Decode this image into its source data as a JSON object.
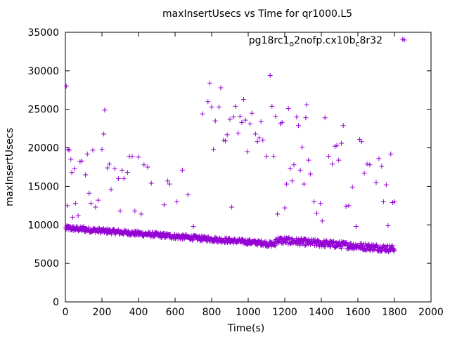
{
  "chart_data": {
    "type": "scatter",
    "title": "maxInsertUsecs vs Time for qr1000.L5",
    "xlabel": "Time(s)",
    "ylabel": "maxInsertUsecs",
    "xlim": [
      0,
      2000
    ],
    "ylim": [
      0,
      35000
    ],
    "xticks": [
      "0",
      "200",
      "400",
      "600",
      "800",
      "1000",
      "1200",
      "1400",
      "1600",
      "1800",
      "2000"
    ],
    "yticks": [
      "0",
      "5000",
      "10000",
      "15000",
      "20000",
      "25000",
      "30000",
      "35000"
    ],
    "legend": {
      "position": "top-right",
      "label_parts": [
        "pg18rc1",
        "o",
        "2nofp.cx10b",
        "c",
        "8r32"
      ]
    },
    "colors": {
      "series": "#9400d3",
      "axis": "#000000"
    },
    "series": [
      {
        "name": "pg18rc1_o2nofp.cx10b_c8r32",
        "marker": "plus",
        "points": [
          [
            5,
            28000
          ],
          [
            10,
            12500
          ],
          [
            15,
            19800
          ],
          [
            20,
            19700
          ],
          [
            30,
            18500
          ],
          [
            35,
            16800
          ],
          [
            40,
            11000
          ],
          [
            50,
            17300
          ],
          [
            55,
            12800
          ],
          [
            70,
            11200
          ],
          [
            80,
            18200
          ],
          [
            90,
            18300
          ],
          [
            100,
            9800
          ],
          [
            110,
            16500
          ],
          [
            120,
            19200
          ],
          [
            130,
            14100
          ],
          [
            140,
            12800
          ],
          [
            150,
            19700
          ],
          [
            165,
            12300
          ],
          [
            180,
            13200
          ],
          [
            200,
            19800
          ],
          [
            210,
            21800
          ],
          [
            215,
            24900
          ],
          [
            230,
            17400
          ],
          [
            240,
            17900
          ],
          [
            250,
            14600
          ],
          [
            270,
            17300
          ],
          [
            290,
            16000
          ],
          [
            300,
            11800
          ],
          [
            310,
            17100
          ],
          [
            320,
            16000
          ],
          [
            340,
            16800
          ],
          [
            350,
            18900
          ],
          [
            365,
            18900
          ],
          [
            380,
            11800
          ],
          [
            400,
            18800
          ],
          [
            415,
            11400
          ],
          [
            430,
            17800
          ],
          [
            450,
            17500
          ],
          [
            470,
            15400
          ],
          [
            540,
            12600
          ],
          [
            560,
            15700
          ],
          [
            570,
            15300
          ],
          [
            610,
            13000
          ],
          [
            640,
            17100
          ],
          [
            670,
            13900
          ],
          [
            700,
            9800
          ],
          [
            750,
            24400
          ],
          [
            780,
            26000
          ],
          [
            790,
            28400
          ],
          [
            800,
            25300
          ],
          [
            810,
            19800
          ],
          [
            820,
            23500
          ],
          [
            840,
            25300
          ],
          [
            850,
            27800
          ],
          [
            865,
            21000
          ],
          [
            875,
            20900
          ],
          [
            885,
            21700
          ],
          [
            900,
            23700
          ],
          [
            910,
            12300
          ],
          [
            920,
            24000
          ],
          [
            930,
            25400
          ],
          [
            945,
            21900
          ],
          [
            955,
            24100
          ],
          [
            965,
            23300
          ],
          [
            975,
            26300
          ],
          [
            985,
            23600
          ],
          [
            995,
            19500
          ],
          [
            1010,
            23100
          ],
          [
            1020,
            24500
          ],
          [
            1040,
            21800
          ],
          [
            1050,
            20800
          ],
          [
            1060,
            21300
          ],
          [
            1070,
            23400
          ],
          [
            1080,
            21000
          ],
          [
            1100,
            18900
          ],
          [
            1120,
            29400
          ],
          [
            1130,
            25400
          ],
          [
            1140,
            18900
          ],
          [
            1150,
            24100
          ],
          [
            1160,
            11400
          ],
          [
            1175,
            23100
          ],
          [
            1185,
            23300
          ],
          [
            1200,
            12200
          ],
          [
            1210,
            15300
          ],
          [
            1220,
            25100
          ],
          [
            1230,
            17300
          ],
          [
            1240,
            15700
          ],
          [
            1250,
            17800
          ],
          [
            1265,
            24000
          ],
          [
            1275,
            22900
          ],
          [
            1285,
            17100
          ],
          [
            1295,
            20100
          ],
          [
            1305,
            15300
          ],
          [
            1315,
            23900
          ],
          [
            1320,
            25600
          ],
          [
            1330,
            18400
          ],
          [
            1340,
            16600
          ],
          [
            1360,
            13000
          ],
          [
            1375,
            11500
          ],
          [
            1395,
            12800
          ],
          [
            1405,
            10500
          ],
          [
            1420,
            23900
          ],
          [
            1440,
            18900
          ],
          [
            1460,
            17900
          ],
          [
            1475,
            20200
          ],
          [
            1485,
            20300
          ],
          [
            1495,
            18400
          ],
          [
            1510,
            20600
          ],
          [
            1520,
            22900
          ],
          [
            1535,
            12400
          ],
          [
            1550,
            12500
          ],
          [
            1570,
            14900
          ],
          [
            1590,
            9800
          ],
          [
            1610,
            21100
          ],
          [
            1620,
            20800
          ],
          [
            1635,
            16700
          ],
          [
            1650,
            17900
          ],
          [
            1665,
            17800
          ],
          [
            1700,
            15500
          ],
          [
            1715,
            18600
          ],
          [
            1730,
            17600
          ],
          [
            1740,
            13000
          ],
          [
            1755,
            15200
          ],
          [
            1765,
            9900
          ],
          [
            1780,
            19200
          ],
          [
            1790,
            12900
          ],
          [
            1800,
            13000
          ],
          [
            1845,
            34100
          ]
        ]
      }
    ]
  }
}
